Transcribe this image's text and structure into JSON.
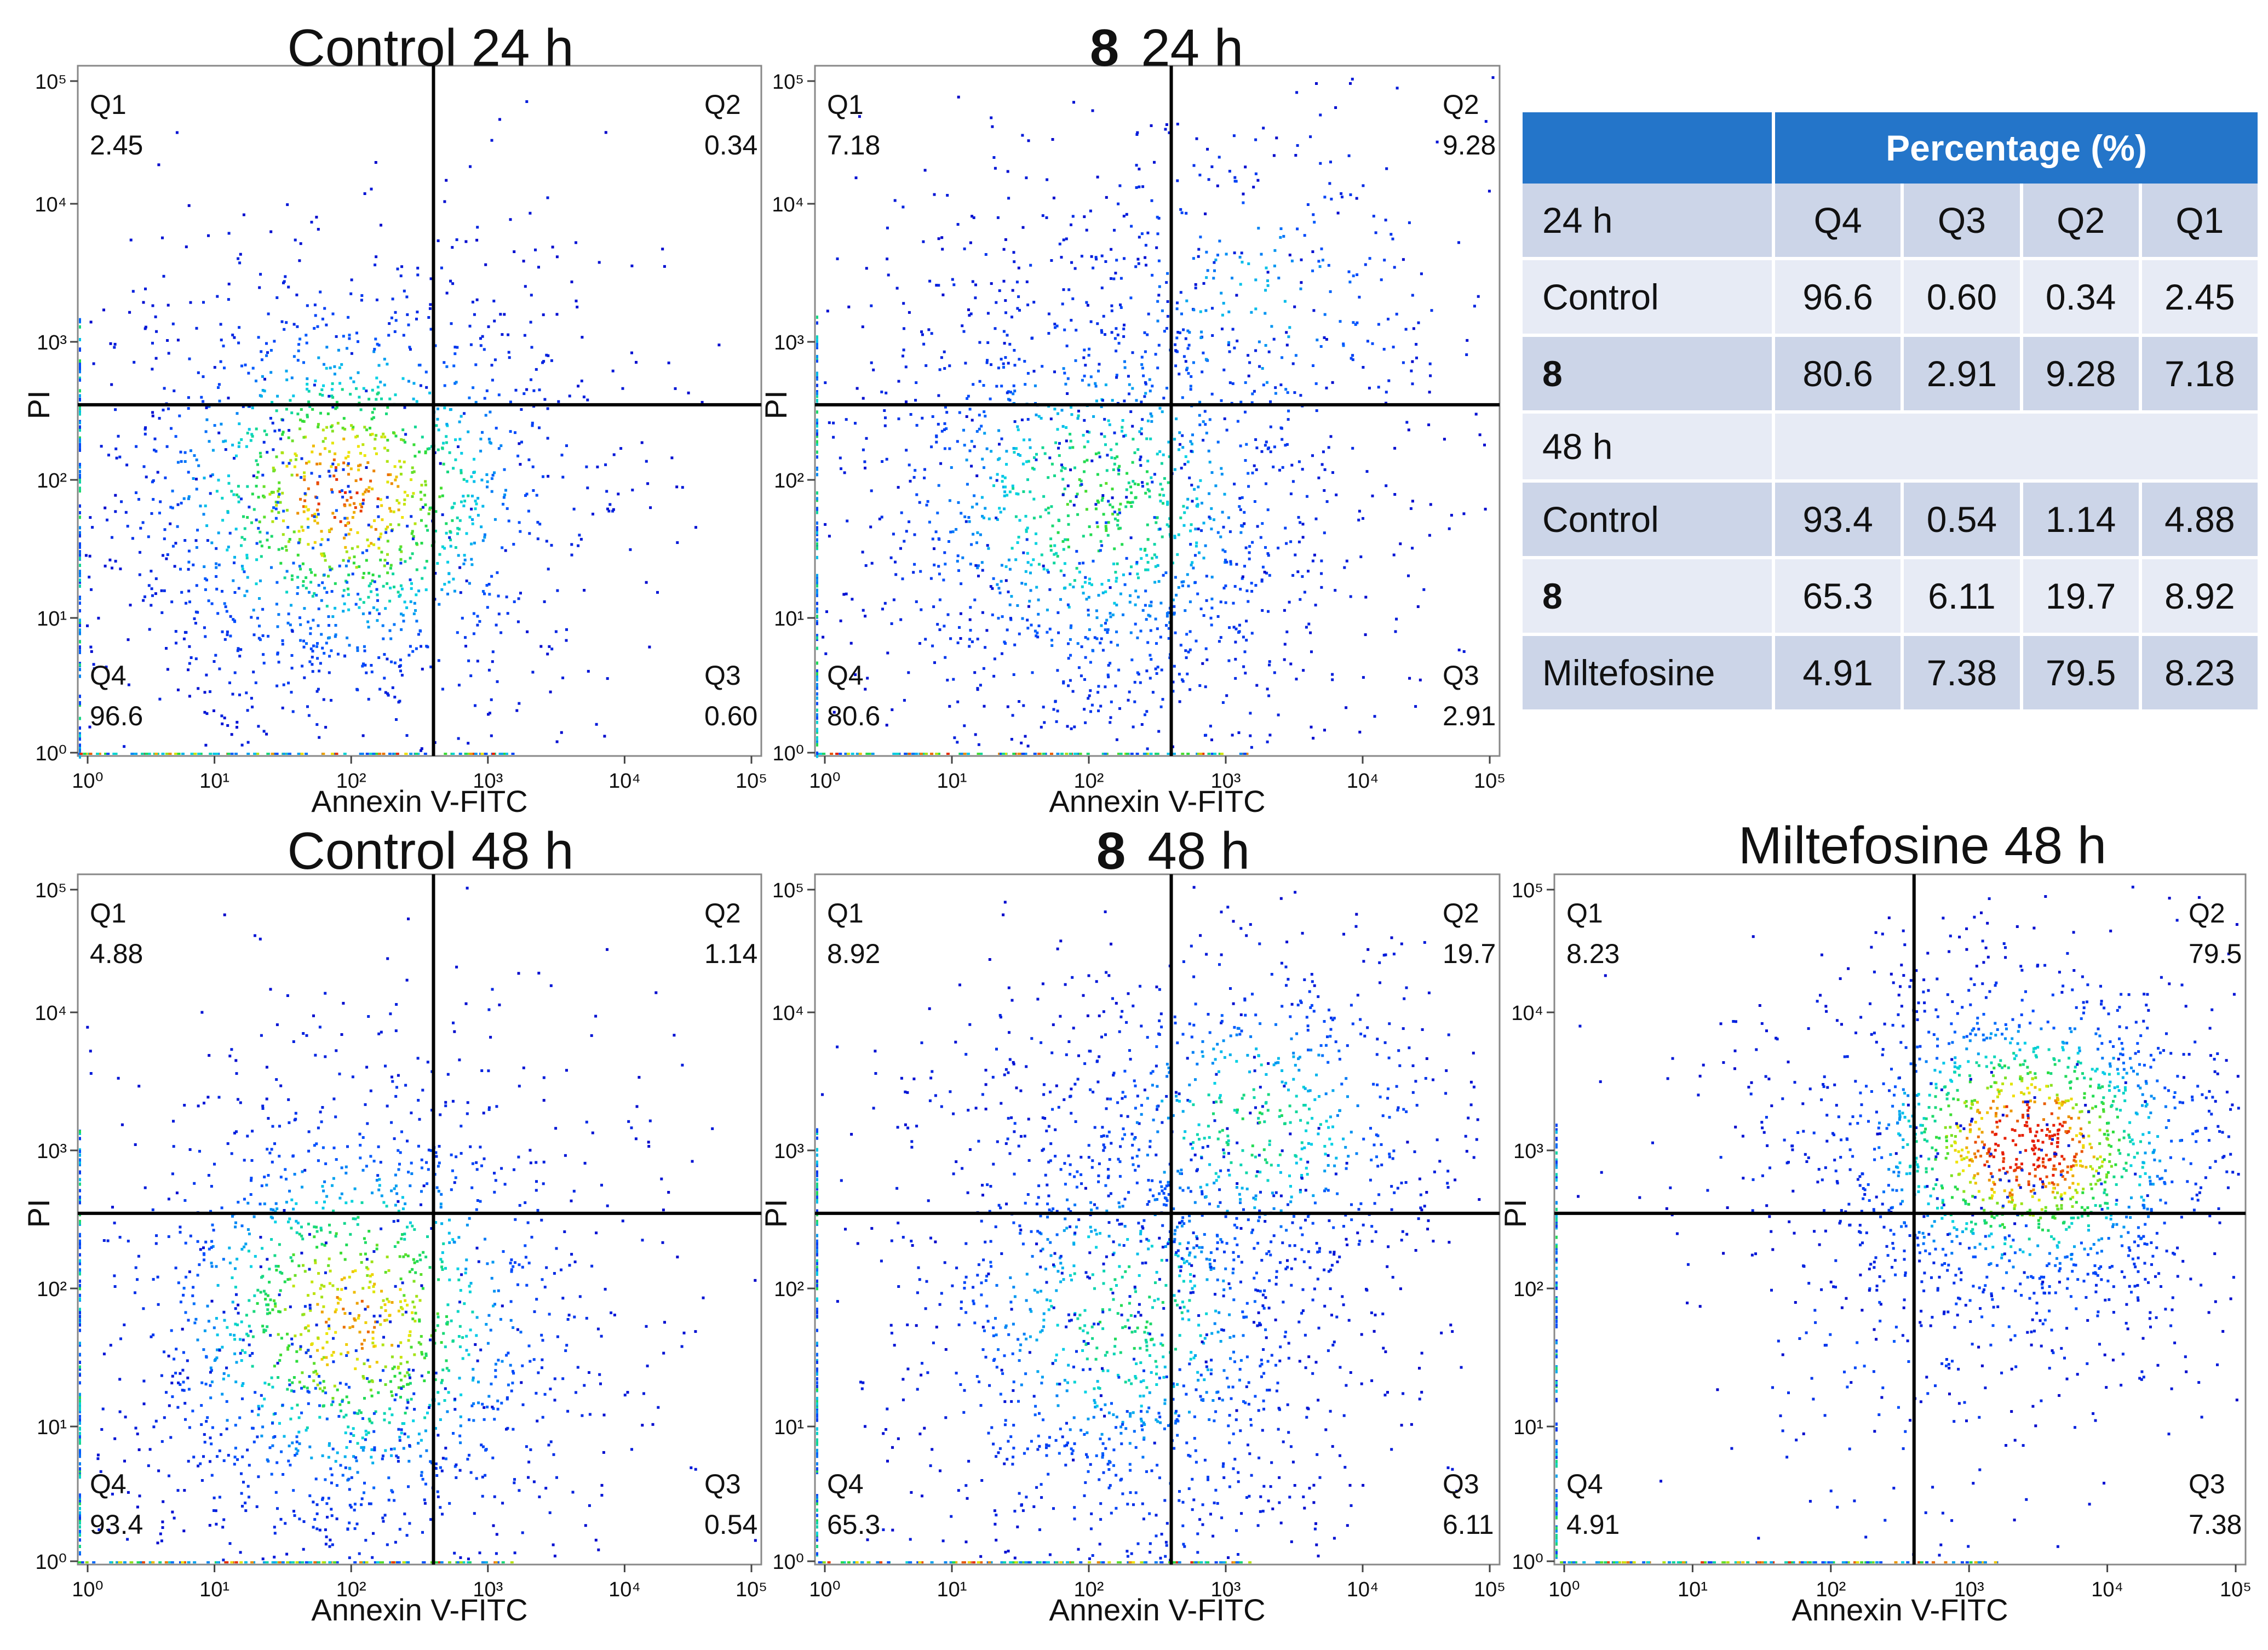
{
  "chart_data": [
    {
      "type": "scatter",
      "title": "Control 24 h",
      "title_bold": "",
      "xlabel": "Annexin V-FITC",
      "ylabel": "PI",
      "scale": "log",
      "xlim": [
        1,
        100000
      ],
      "ylim": [
        1,
        100000
      ],
      "x_ticks": [
        "10⁰",
        "10¹",
        "10²",
        "10³",
        "10⁴",
        "10⁵"
      ],
      "y_ticks": [
        "10⁰",
        "10¹",
        "10²",
        "10³",
        "10⁴",
        "10⁵"
      ],
      "gate": {
        "x": 400,
        "y": 350
      },
      "quadrants": [
        {
          "label": "Q1",
          "value": "2.45"
        },
        {
          "label": "Q2",
          "value": "0.34"
        },
        {
          "label": "Q3",
          "value": "0.60"
        },
        {
          "label": "Q4",
          "value": "96.6"
        }
      ],
      "populations": [
        {
          "cx": 90,
          "cy": 80,
          "sx": 0.42,
          "sy": 0.38,
          "n": 1400,
          "peak": 0.9
        },
        {
          "cx": 45,
          "cy": 22,
          "sx": 0.3,
          "sy": 0.35,
          "n": 260,
          "peak": 0.35
        },
        {
          "cx": 250,
          "cy": 900,
          "sx": 0.5,
          "sy": 0.35,
          "n": 40,
          "peak": 0.15
        }
      ]
    },
    {
      "type": "scatter",
      "title": "24 h",
      "title_bold": "8",
      "xlabel": "Annexin V-FITC",
      "ylabel": "PI",
      "scale": "log",
      "xlim": [
        1,
        100000
      ],
      "ylim": [
        1,
        100000
      ],
      "x_ticks": [
        "10⁰",
        "10¹",
        "10²",
        "10³",
        "10⁴",
        "10⁵"
      ],
      "y_ticks": [
        "10⁰",
        "10¹",
        "10²",
        "10³",
        "10⁴",
        "10⁵"
      ],
      "gate": {
        "x": 400,
        "y": 350
      },
      "quadrants": [
        {
          "label": "Q1",
          "value": "7.18"
        },
        {
          "label": "Q2",
          "value": "9.28"
        },
        {
          "label": "Q3",
          "value": "2.91"
        },
        {
          "label": "Q4",
          "value": "80.6"
        }
      ],
      "populations": [
        {
          "cx": 110,
          "cy": 70,
          "sx": 0.45,
          "sy": 0.42,
          "n": 1250,
          "peak": 0.65
        },
        {
          "cx": 1500,
          "cy": 1800,
          "sx": 0.4,
          "sy": 0.35,
          "n": 320,
          "peak": 0.45
        },
        {
          "cx": 60,
          "cy": 900,
          "sx": 0.45,
          "sy": 0.4,
          "n": 130,
          "peak": 0.2
        },
        {
          "cx": 250,
          "cy": 15,
          "sx": 0.35,
          "sy": 0.4,
          "n": 200,
          "peak": 0.3
        }
      ]
    },
    {
      "type": "scatter",
      "title": "Control 48 h",
      "title_bold": "",
      "xlabel": "Annexin V-FITC",
      "ylabel": "PI",
      "scale": "log",
      "xlim": [
        1,
        100000
      ],
      "ylim": [
        1,
        100000
      ],
      "x_ticks": [
        "10⁰",
        "10¹",
        "10²",
        "10³",
        "10⁴",
        "10⁵"
      ],
      "y_ticks": [
        "10⁰",
        "10¹",
        "10²",
        "10³",
        "10⁴",
        "10⁵"
      ],
      "gate": {
        "x": 400,
        "y": 350
      },
      "quadrants": [
        {
          "label": "Q1",
          "value": "4.88"
        },
        {
          "label": "Q2",
          "value": "1.14"
        },
        {
          "label": "Q3",
          "value": "0.54"
        },
        {
          "label": "Q4",
          "value": "93.4"
        }
      ],
      "populations": [
        {
          "cx": 100,
          "cy": 60,
          "sx": 0.42,
          "sy": 0.42,
          "n": 1400,
          "peak": 0.85
        },
        {
          "cx": 60,
          "cy": 12,
          "sx": 0.3,
          "sy": 0.3,
          "n": 250,
          "peak": 0.3
        },
        {
          "cx": 250,
          "cy": 1300,
          "sx": 0.55,
          "sy": 0.4,
          "n": 80,
          "peak": 0.15
        }
      ]
    },
    {
      "type": "scatter",
      "title": "48 h",
      "title_bold": "8",
      "xlabel": "Annexin V-FITC",
      "ylabel": "PI",
      "scale": "log",
      "xlim": [
        1,
        100000
      ],
      "ylim": [
        1,
        100000
      ],
      "x_ticks": [
        "10⁰",
        "10¹",
        "10²",
        "10³",
        "10⁴",
        "10⁵"
      ],
      "y_ticks": [
        "10⁰",
        "10¹",
        "10²",
        "10³",
        "10⁴",
        "10⁵"
      ],
      "gate": {
        "x": 400,
        "y": 350
      },
      "quadrants": [
        {
          "label": "Q1",
          "value": "8.92"
        },
        {
          "label": "Q2",
          "value": "19.7"
        },
        {
          "label": "Q3",
          "value": "6.11"
        },
        {
          "label": "Q4",
          "value": "65.3"
        }
      ],
      "populations": [
        {
          "cx": 180,
          "cy": 60,
          "sx": 0.4,
          "sy": 0.42,
          "n": 1000,
          "peak": 0.6
        },
        {
          "cx": 1500,
          "cy": 1500,
          "sx": 0.38,
          "sy": 0.32,
          "n": 700,
          "peak": 0.6
        },
        {
          "cx": 300,
          "cy": 8,
          "sx": 0.3,
          "sy": 0.35,
          "n": 200,
          "peak": 0.3
        },
        {
          "cx": 60,
          "cy": 900,
          "sx": 0.4,
          "sy": 0.4,
          "n": 120,
          "peak": 0.2
        }
      ]
    },
    {
      "type": "scatter",
      "title": "Miltefosine 48 h",
      "title_bold": "",
      "xlabel": "Annexin V-FITC",
      "ylabel": "PI",
      "scale": "log",
      "xlim": [
        1,
        100000
      ],
      "ylim": [
        1,
        100000
      ],
      "x_ticks": [
        "10⁰",
        "10¹",
        "10²",
        "10³",
        "10⁴",
        "10⁵"
      ],
      "y_ticks": [
        "10⁰",
        "10¹",
        "10²",
        "10³",
        "10⁴",
        "10⁵"
      ],
      "gate": {
        "x": 400,
        "y": 350
      },
      "quadrants": [
        {
          "label": "Q1",
          "value": "8.23"
        },
        {
          "label": "Q2",
          "value": "79.5"
        },
        {
          "label": "Q3",
          "value": "7.38"
        },
        {
          "label": "Q4",
          "value": "4.91"
        }
      ],
      "populations": [
        {
          "cx": 2500,
          "cy": 1100,
          "sx": 0.36,
          "sy": 0.3,
          "n": 1500,
          "peak": 1.0
        },
        {
          "cx": 250,
          "cy": 30,
          "sx": 0.3,
          "sy": 0.45,
          "n": 140,
          "peak": 0.25
        },
        {
          "cx": 80,
          "cy": 1200,
          "sx": 0.45,
          "sy": 0.35,
          "n": 70,
          "peak": 0.15
        },
        {
          "cx": 3000,
          "cy": 120,
          "sx": 0.35,
          "sy": 0.3,
          "n": 150,
          "peak": 0.3
        }
      ]
    }
  ],
  "table": {
    "header_group": "Percentage (%)",
    "columns": [
      "Q4",
      "Q3",
      "Q2",
      "Q1"
    ],
    "rows": [
      {
        "kind": "dark",
        "label": "24 h",
        "bold": false,
        "values": [
          "Q4",
          "Q3",
          "Q2",
          "Q1"
        ]
      },
      {
        "kind": "light",
        "label": "Control",
        "bold": false,
        "values": [
          "96.6",
          "0.60",
          "0.34",
          "2.45"
        ]
      },
      {
        "kind": "dark",
        "label": "8",
        "bold": true,
        "values": [
          "80.6",
          "2.91",
          "9.28",
          "7.18"
        ]
      },
      {
        "kind": "light group",
        "label": "48 h",
        "bold": false,
        "values": []
      },
      {
        "kind": "dark",
        "label": "Control",
        "bold": false,
        "values": [
          "93.4",
          "0.54",
          "1.14",
          "4.88"
        ]
      },
      {
        "kind": "light",
        "label": "8",
        "bold": true,
        "values": [
          "65.3",
          "6.11",
          "19.7",
          "8.92"
        ]
      },
      {
        "kind": "dark",
        "label": "Miltefosine",
        "bold": false,
        "values": [
          "4.91",
          "7.38",
          "79.5",
          "8.23"
        ]
      }
    ]
  }
}
